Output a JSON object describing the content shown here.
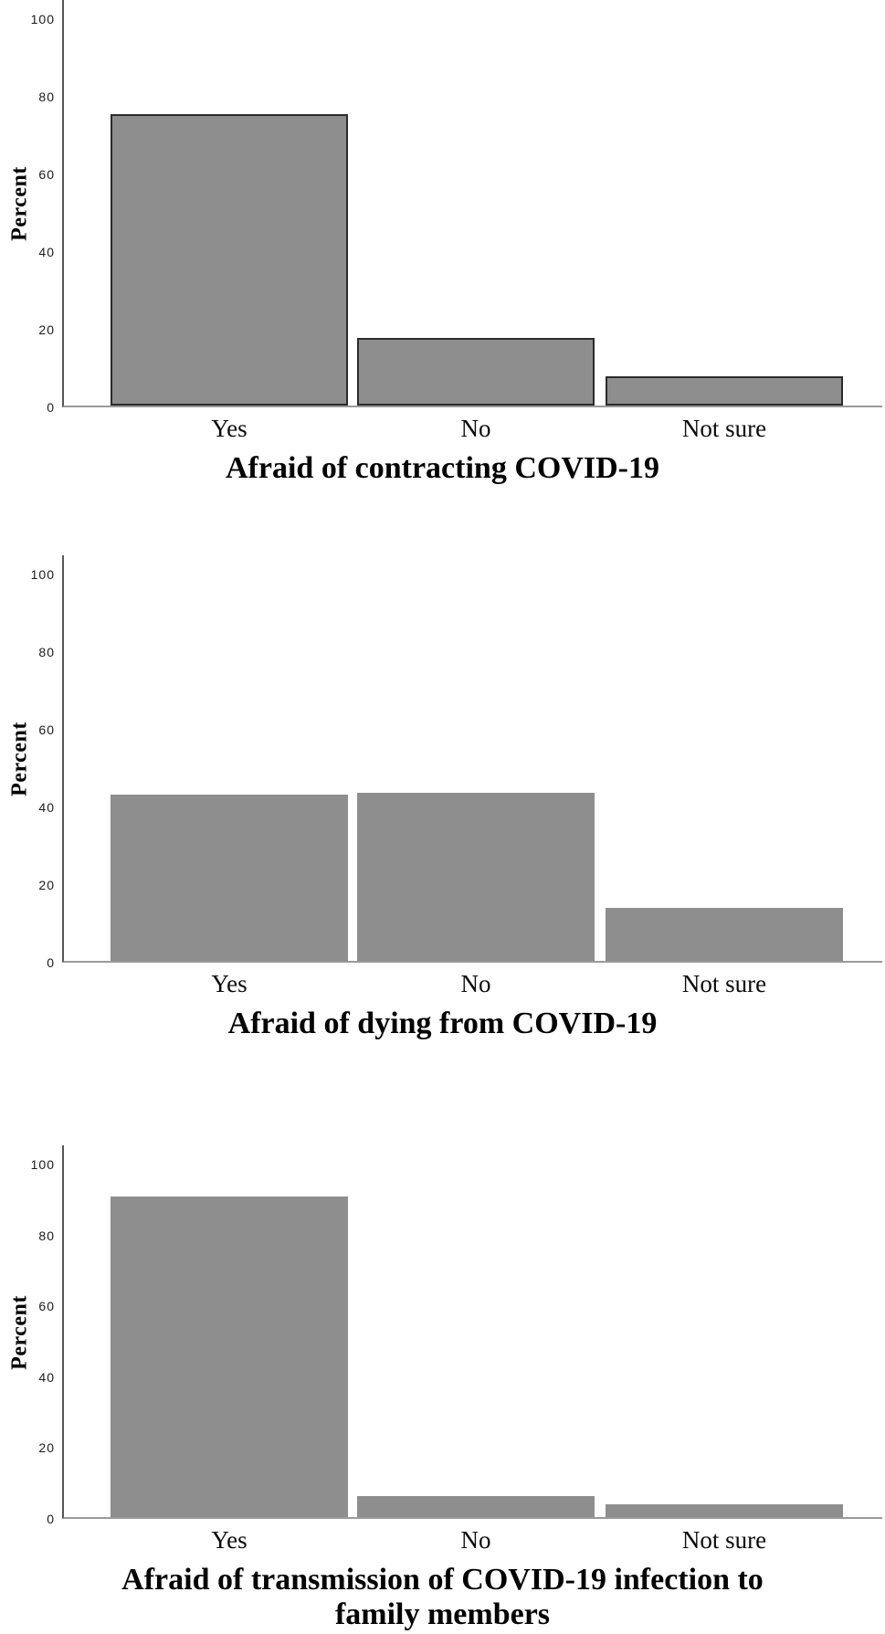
{
  "figure": {
    "background": "#ffffff",
    "y_axis_label": "Percent",
    "categories": [
      "Yes",
      "No",
      "Not sure"
    ],
    "axis_color": "#565656",
    "baseline_color": "#9a9a9a"
  },
  "chart_data": [
    {
      "type": "bar",
      "title": "Afraid of contracting COVID-19",
      "categories": [
        "Yes",
        "No",
        "Not sure"
      ],
      "values": [
        75,
        17.5,
        7.5
      ],
      "xlabel": "Afraid of contracting COVID-19",
      "ylabel": "Percent",
      "ylim": [
        0,
        100
      ],
      "yticks": [
        0,
        20,
        40,
        60,
        80,
        100
      ],
      "grid": false,
      "legend": "none",
      "bar_color": "#8e8e8e",
      "bar_border_color": "#2b2b2b"
    },
    {
      "type": "bar",
      "title": "Afraid of dying from COVID-19",
      "categories": [
        "Yes",
        "No",
        "Not sure"
      ],
      "values": [
        42.8,
        43.4,
        13.6
      ],
      "xlabel": "Afraid of dying from COVID-19",
      "ylabel": "Percent",
      "ylim": [
        0,
        100
      ],
      "yticks": [
        0,
        20,
        40,
        60,
        80,
        100
      ],
      "grid": false,
      "legend": "none",
      "bar_color": "#8e8e8e",
      "bar_border_color": null
    },
    {
      "type": "bar",
      "title": "Afraid of transmission of COVID-19 infection to family members",
      "categories": [
        "Yes",
        "No",
        "Not sure"
      ],
      "values": [
        90.4,
        6,
        3.6
      ],
      "xlabel": "Afraid of transmission of COVID-19 infection to family members",
      "ylabel": "Percent",
      "ylim": [
        0,
        100
      ],
      "yticks": [
        0,
        20,
        40,
        60,
        80,
        100
      ],
      "grid": false,
      "legend": "none",
      "bar_color": "#8e8e8e",
      "bar_border_color": null
    }
  ]
}
